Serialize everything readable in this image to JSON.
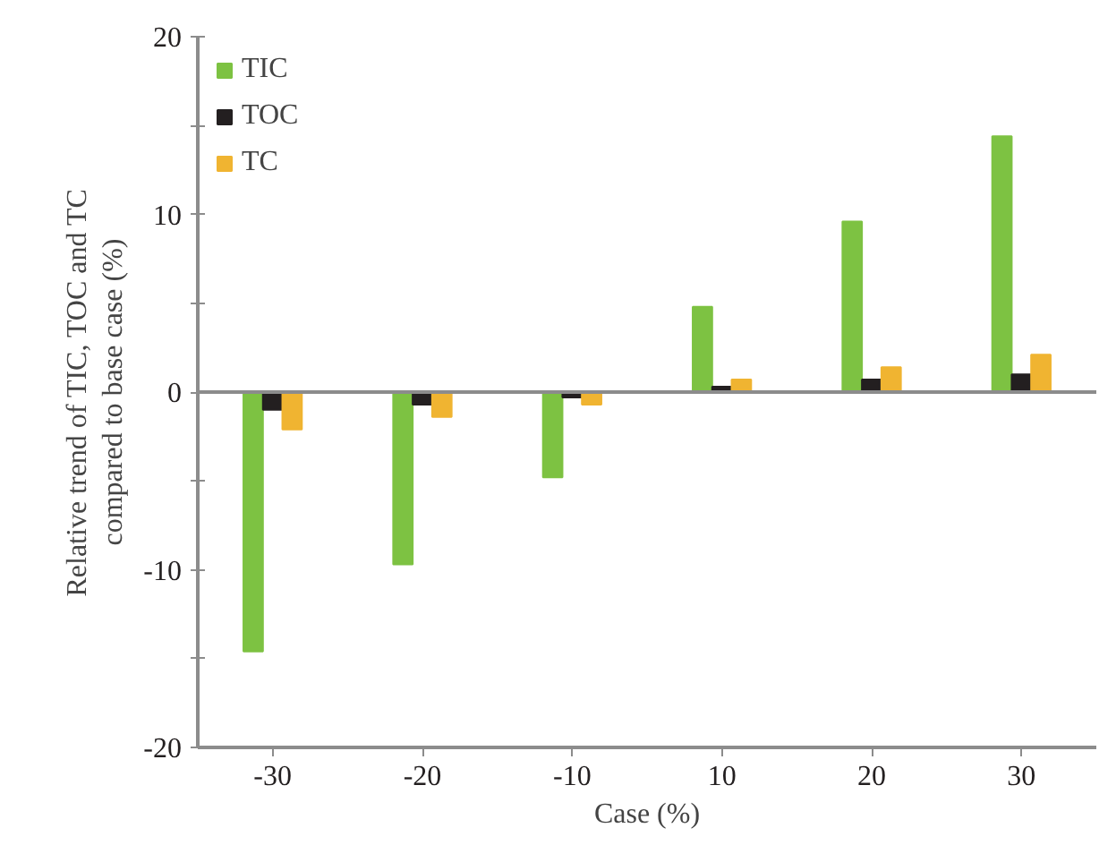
{
  "chart_data": {
    "type": "bar",
    "xlabel": "Case (%)",
    "ylabel": "Relative trend of TIC, TOC and TC\ncompared to base case (%)",
    "categories": [
      "-30",
      "-20",
      "-10",
      "10",
      "20",
      "30"
    ],
    "series": [
      {
        "name": "TIC",
        "color": "#7dc242",
        "values": [
          -14.6,
          -9.7,
          -4.8,
          4.8,
          9.6,
          14.4
        ]
      },
      {
        "name": "TOC",
        "color": "#231f20",
        "values": [
          -1.0,
          -0.7,
          -0.3,
          0.3,
          0.7,
          1.0
        ]
      },
      {
        "name": "TC",
        "color": "#f0b431",
        "values": [
          -2.1,
          -1.4,
          -0.7,
          0.7,
          1.4,
          2.1
        ]
      }
    ],
    "ylim": [
      -20,
      20
    ],
    "yticks": [
      -20,
      {
        "value": -15,
        "label": null
      },
      -10,
      {
        "value": -5,
        "label": null
      },
      0,
      {
        "value": 5,
        "label": null
      },
      10,
      {
        "value": 15,
        "label": null
      },
      20
    ],
    "ref_lines": [
      {
        "axis": "y",
        "value": 0,
        "color": "#8c8c8c"
      }
    ],
    "legend": "top left"
  }
}
